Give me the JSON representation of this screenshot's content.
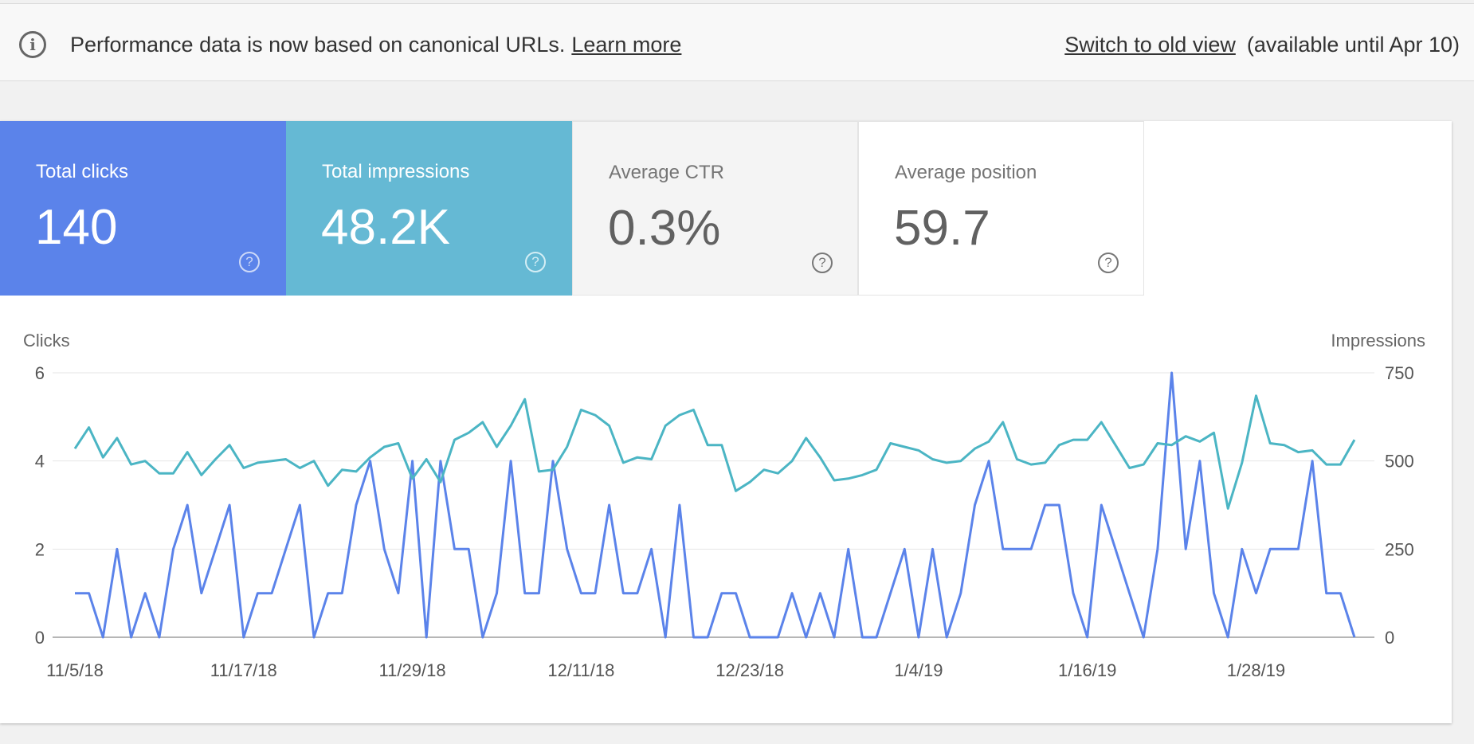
{
  "banner": {
    "message": "Performance data is now based on canonical URLs.",
    "learn_more": "Learn more",
    "switch_link": "Switch to old view",
    "availability": "(available until Apr 10)"
  },
  "metrics": [
    {
      "label": "Total clicks",
      "value": "140"
    },
    {
      "label": "Total impressions",
      "value": "48.2K"
    },
    {
      "label": "Average CTR",
      "value": "0.3%"
    },
    {
      "label": "Average position",
      "value": "59.7"
    }
  ],
  "colors": {
    "clicks": "#5b83ea",
    "impressions": "#4bb5c4",
    "ctr_tile": "#f4f4f4"
  },
  "icons": {
    "info": "info-icon",
    "help": "help-icon"
  },
  "chart_data": {
    "type": "line",
    "x_start": "11/5/18",
    "x_end": "2/3/19",
    "xticks": [
      "11/5/18",
      "11/17/18",
      "11/29/18",
      "12/11/18",
      "12/23/18",
      "1/4/19",
      "1/16/19",
      "1/28/19"
    ],
    "left_axis": {
      "label": "Clicks",
      "ticks": [
        "0",
        "2",
        "4",
        "6"
      ],
      "ylim": [
        0,
        6
      ]
    },
    "right_axis": {
      "label": "Impressions",
      "ticks": [
        "0",
        "250",
        "500",
        "750"
      ],
      "ylim": [
        0,
        750
      ]
    },
    "grid": true,
    "series": [
      {
        "name": "Clicks",
        "axis": "left",
        "color": "#5b83ea",
        "values": [
          1,
          1,
          0,
          2,
          0,
          1,
          0,
          2,
          3,
          1,
          2,
          3,
          0,
          1,
          1,
          2,
          3,
          0,
          1,
          1,
          3,
          4,
          2,
          1,
          4,
          0,
          4,
          2,
          2,
          0,
          1,
          4,
          1,
          1,
          4,
          2,
          1,
          1,
          3,
          1,
          1,
          2,
          0,
          3,
          0,
          0,
          1,
          1,
          0,
          0,
          0,
          1,
          0,
          1,
          0,
          2,
          0,
          0,
          1,
          2,
          0,
          2,
          0,
          1,
          3,
          4,
          2,
          2,
          2,
          3,
          3,
          1,
          0,
          3,
          2,
          1,
          0,
          2,
          6,
          2,
          4,
          1,
          0,
          2,
          1,
          2,
          2,
          2,
          4,
          1,
          1,
          0
        ]
      },
      {
        "name": "Impressions",
        "axis": "right",
        "color": "#4bb5c4",
        "values": [
          535,
          595,
          510,
          565,
          490,
          500,
          465,
          465,
          525,
          460,
          505,
          545,
          480,
          495,
          500,
          505,
          480,
          500,
          430,
          475,
          470,
          510,
          540,
          550,
          450,
          505,
          440,
          560,
          580,
          610,
          540,
          600,
          675,
          470,
          475,
          540,
          645,
          630,
          600,
          495,
          510,
          505,
          600,
          630,
          645,
          545,
          545,
          415,
          440,
          475,
          465,
          500,
          565,
          510,
          445,
          450,
          460,
          475,
          550,
          540,
          530,
          505,
          495,
          500,
          535,
          555,
          610,
          505,
          490,
          495,
          545,
          560,
          560,
          610,
          545,
          480,
          490,
          550,
          545,
          570,
          555,
          580,
          365,
          495,
          685,
          550,
          545,
          525,
          530,
          490,
          490,
          560
        ]
      }
    ]
  }
}
